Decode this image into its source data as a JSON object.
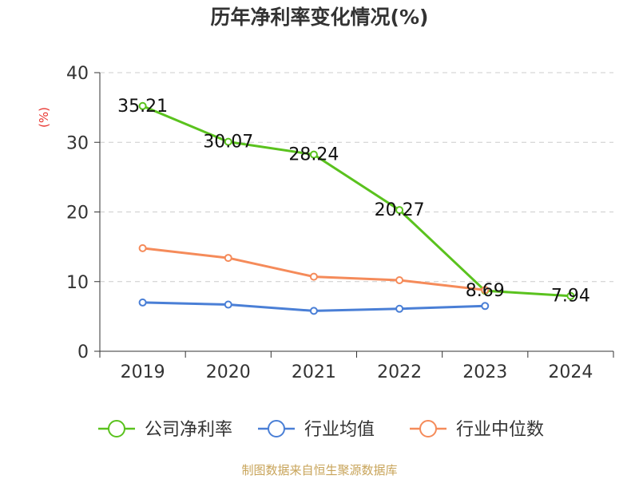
{
  "title": "历年净利率变化情况(%)",
  "unit_label": "(%)",
  "source": "制图数据来自恒生聚源数据库",
  "chart_data": {
    "type": "line",
    "categories": [
      "2019",
      "2020",
      "2021",
      "2022",
      "2023",
      "2024"
    ],
    "ylim": [
      0,
      40
    ],
    "yticks": [
      0,
      10,
      20,
      30,
      40
    ],
    "grid": true,
    "legend_position": "bottom",
    "series": [
      {
        "name": "公司净利率",
        "color": "#5ac21e",
        "values": [
          35.21,
          30.07,
          28.24,
          20.27,
          8.69,
          7.94
        ],
        "labels": true
      },
      {
        "name": "行业均值",
        "color": "#4a7fd6",
        "values": [
          7.0,
          6.7,
          5.8,
          6.1,
          6.5,
          null
        ],
        "labels": false
      },
      {
        "name": "行业中位数",
        "color": "#f58b5a",
        "values": [
          14.8,
          13.4,
          10.7,
          10.2,
          8.8,
          null
        ],
        "labels": false
      }
    ]
  }
}
